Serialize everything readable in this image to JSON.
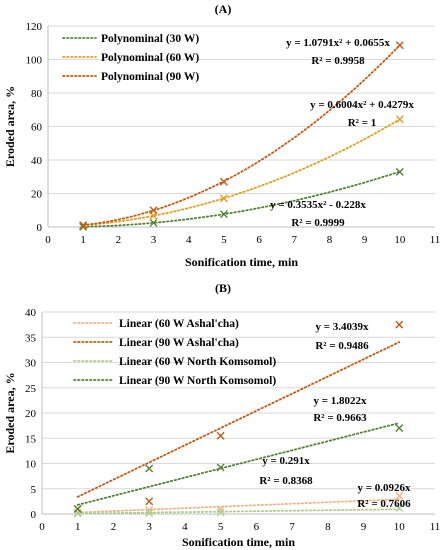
{
  "chart_data": [
    {
      "type": "scatter",
      "title": "(A)",
      "xlabel": "Sonification time, min",
      "ylabel": "Eroded area, %",
      "xlim": [
        0,
        11
      ],
      "ylim": [
        0,
        120
      ],
      "xticks": [
        "0",
        "1",
        "2",
        "3",
        "4",
        "5",
        "6",
        "7",
        "8",
        "9",
        "10",
        "11"
      ],
      "yticks": [
        "0",
        "20",
        "40",
        "60",
        "80",
        "100",
        "120"
      ],
      "legend_position": "top-left",
      "series": [
        {
          "name": "Polynominal (30 W)",
          "color": "#548235",
          "x": [
            1,
            3,
            5,
            10
          ],
          "values": [
            0.1,
            2.5,
            7.7,
            32.9
          ],
          "trend": {
            "a": 0.3535,
            "b": -0.228
          },
          "equation": "y = 0.3535x² - 0.228x",
          "r2": "R² = 0.9999"
        },
        {
          "name": "Polynominal (60 W)",
          "color": "#E0A020",
          "x": [
            1,
            3,
            5,
            10
          ],
          "values": [
            1.0,
            6.7,
            17.1,
            64.3
          ],
          "trend": {
            "a": 0.6004,
            "b": 0.4279
          },
          "equation": "y = 0.6004x² + 0.4279x",
          "r2": "R² = 1"
        },
        {
          "name": "Polynominal (90 W)",
          "color": "#C55A11",
          "x": [
            1,
            3,
            5,
            10
          ],
          "values": [
            1.1,
            10.0,
            27.0,
            108.5
          ],
          "trend": {
            "a": 1.0791,
            "b": 0.0655
          },
          "equation": "y = 1.0791x² + 0.0655x",
          "r2": "R² = 0.9958"
        }
      ]
    },
    {
      "type": "scatter",
      "title": "(B)",
      "xlabel": "Sonification time, min",
      "ylabel": "Eroded area, %",
      "xlim": [
        0,
        11
      ],
      "ylim": [
        0,
        40
      ],
      "xticks": [
        "0",
        "1",
        "2",
        "3",
        "4",
        "5",
        "6",
        "7",
        "8",
        "9",
        "10",
        "11"
      ],
      "yticks": [
        "0",
        "5",
        "10",
        "15",
        "20",
        "25",
        "30",
        "35",
        "40"
      ],
      "legend_position": "top-left",
      "series": [
        {
          "name": "Linear (60 W Ashal'cha)",
          "color": "#F4B183",
          "x": [
            1,
            3,
            5,
            10
          ],
          "values": [
            0.3,
            0.8,
            0.9,
            3.6
          ],
          "trend": {
            "slope": 0.291
          },
          "equation": "y = 0.291x",
          "r2": "R² = 0.8368"
        },
        {
          "name": "Linear (90 W Ashal'cha)",
          "color": "#C55A11",
          "x": [
            1,
            3,
            5,
            10
          ],
          "values": [
            1.0,
            2.5,
            15.5,
            37.5
          ],
          "trend": {
            "slope": 3.4039
          },
          "equation": "y = 3.4039x",
          "r2": "R² = 0.9486"
        },
        {
          "name": "Linear (60 W North Komsomol)",
          "color": "#A9D18E",
          "x": [
            1,
            3,
            5,
            10
          ],
          "values": [
            0.1,
            0.2,
            0.3,
            1.2
          ],
          "trend": {
            "slope": 0.0926
          },
          "equation": "y = 0.0926x",
          "r2": "R² = 0.7606"
        },
        {
          "name": "Linear (90 W North Komsomol)",
          "color": "#548235",
          "x": [
            1,
            3,
            5,
            10
          ],
          "values": [
            1.0,
            9.0,
            9.2,
            17.0
          ],
          "trend": {
            "slope": 1.8022
          },
          "equation": "y = 1.8022x",
          "r2": "R² = 0.9663"
        }
      ]
    }
  ]
}
